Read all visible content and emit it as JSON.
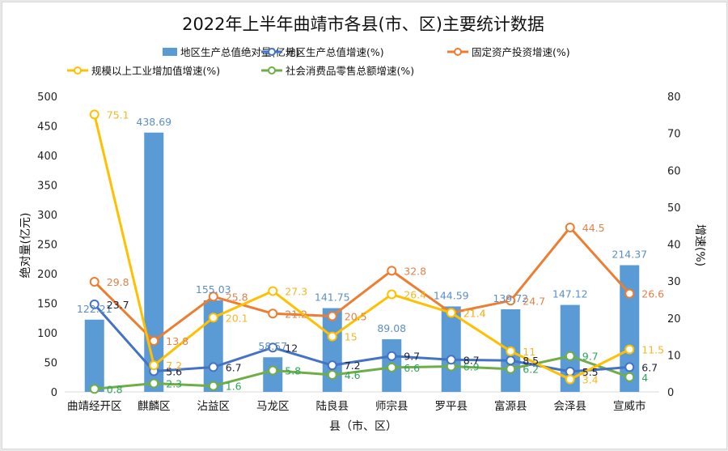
{
  "chart_data": {
    "type": "bar+line",
    "title": "2022年上半年曲靖市各县(市、区)主要统计数据",
    "xlabel": "县（市、区）",
    "ylabel_left": "绝对量(亿元)",
    "ylabel_right": "增速(%)",
    "ylim_left": [
      0,
      500
    ],
    "ylim_right": [
      0,
      80
    ],
    "yticks_left": [
      0,
      50,
      100,
      150,
      200,
      250,
      300,
      350,
      400,
      450,
      500
    ],
    "yticks_right": [
      0,
      10,
      20,
      30,
      40,
      50,
      60,
      70,
      80
    ],
    "grid": false,
    "legend_position": "top",
    "categories": [
      "曲靖经开区",
      "麒麟区",
      "沾益区",
      "马龙区",
      "陆良县",
      "师宗县",
      "罗平县",
      "富源县",
      "会泽县",
      "宣威市"
    ],
    "series": [
      {
        "name": "地区生产总值绝对量(亿元)",
        "type": "bar",
        "axis": "left",
        "color": "#5b9bd5",
        "values": [
          122.21,
          438.69,
          155.03,
          58.57,
          141.75,
          89.08,
          144.59,
          139.72,
          147.12,
          214.37
        ]
      },
      {
        "name": "地区生产总值增速(%)",
        "type": "line",
        "axis": "right",
        "color": "#4472c4",
        "label_color": "#1f1f3a",
        "values": [
          23.7,
          5.6,
          6.7,
          12,
          7.2,
          9.7,
          8.7,
          8.5,
          5.5,
          6.7
        ]
      },
      {
        "name": "固定资产投资增速(%)",
        "type": "line",
        "axis": "right",
        "color": "#ed7d31",
        "label_color": "#e0824a",
        "values": [
          29.8,
          13.8,
          25.8,
          21.2,
          20.5,
          32.8,
          21.4,
          24.7,
          44.5,
          26.6
        ]
      },
      {
        "name": "规模以上工业增加值增速(%)",
        "type": "line",
        "axis": "right",
        "color": "#ffc000",
        "label_color": "#f2b824",
        "values": [
          75.1,
          7.2,
          20.1,
          27.3,
          15,
          26.4,
          21.4,
          11,
          3.4,
          11.5
        ]
      },
      {
        "name": "社会消费品零售总额增速(%)",
        "type": "line",
        "axis": "right",
        "color": "#70ad47",
        "label_color": "#2ea65a",
        "values": [
          0.8,
          2.3,
          1.6,
          5.8,
          4.6,
          6.6,
          6.9,
          6.2,
          9.7,
          4
        ]
      }
    ]
  }
}
